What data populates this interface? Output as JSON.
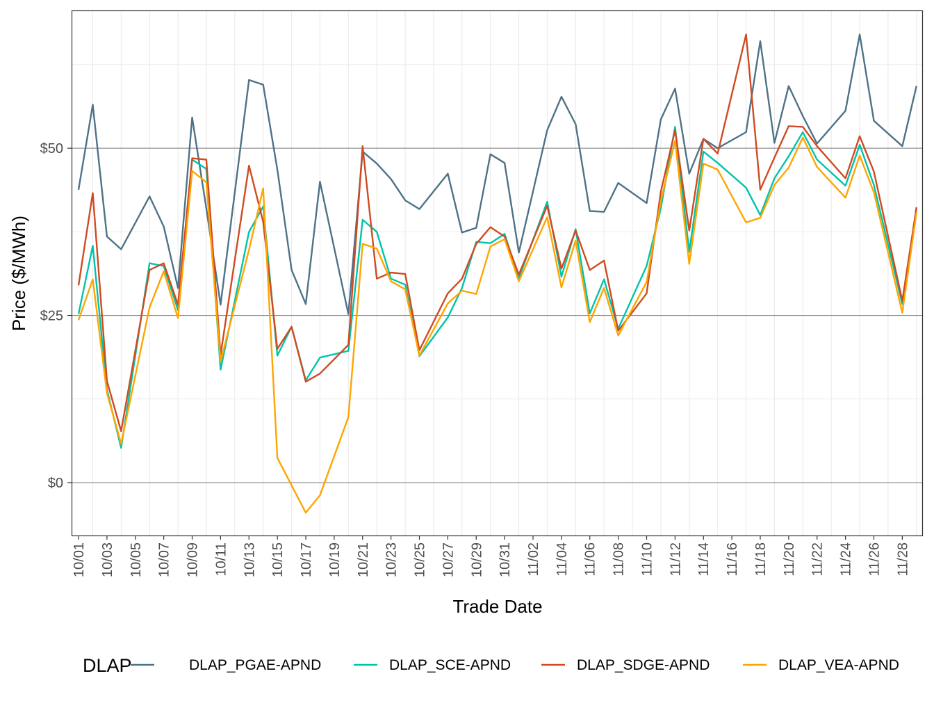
{
  "chart_data": {
    "type": "line",
    "title": "",
    "xlabel": "Trade Date",
    "ylabel": "Price ($/MWh)",
    "ylim": [
      -7.9,
      70.6
    ],
    "xlim": [
      "10/01",
      "11/29"
    ],
    "y_ticks": [
      {
        "value": 0,
        "label": "$0"
      },
      {
        "value": 25,
        "label": "$25"
      },
      {
        "value": 50,
        "label": "$50"
      }
    ],
    "x_tick_labels": [
      "10/01",
      "10/03",
      "10/05",
      "10/07",
      "10/09",
      "10/11",
      "10/13",
      "10/15",
      "10/17",
      "10/19",
      "10/21",
      "10/23",
      "10/25",
      "10/27",
      "10/29",
      "10/31",
      "11/02",
      "11/04",
      "11/06",
      "11/08",
      "11/10",
      "11/12",
      "11/14",
      "11/16",
      "11/18",
      "11/20",
      "11/22",
      "11/24",
      "11/26",
      "11/28"
    ],
    "grid": true,
    "legend_position": "bottom",
    "legend_title": "DLAP",
    "x": [
      "10/01",
      "10/02",
      "10/03",
      "10/04",
      "10/06",
      "10/07",
      "10/08",
      "10/09",
      "10/10",
      "10/11",
      "10/13",
      "10/14",
      "10/15",
      "10/16",
      "10/17",
      "10/18",
      "10/20",
      "10/21",
      "10/22",
      "10/23",
      "10/24",
      "10/25",
      "10/27",
      "10/28",
      "10/29",
      "10/30",
      "10/31",
      "11/01",
      "11/03",
      "11/04",
      "11/05",
      "11/06",
      "11/07",
      "11/08",
      "11/10",
      "11/11",
      "11/12",
      "11/13",
      "11/14",
      "11/15",
      "11/17",
      "11/18",
      "11/19",
      "11/20",
      "11/21",
      "11/22",
      "11/24",
      "11/25",
      "11/26",
      "11/28",
      "11/29"
    ],
    "series": [
      {
        "name": "DLAP_PGAE-APND",
        "color": "#4E7287",
        "values": [
          43.8,
          56.5,
          36.8,
          34.9,
          42.8,
          38.3,
          29.1,
          54.6,
          41.0,
          26.6,
          60.2,
          59.5,
          46.8,
          31.8,
          26.7,
          45.0,
          25.2,
          49.5,
          47.7,
          45.4,
          42.2,
          40.9,
          46.2,
          37.4,
          38.1,
          49.1,
          47.8,
          34.4,
          52.7,
          57.7,
          53.6,
          40.6,
          40.5,
          44.8,
          41.8,
          54.3,
          58.9,
          46.2,
          51.4,
          50.0,
          52.4,
          66.0,
          50.8,
          59.3,
          54.8,
          50.7,
          55.6,
          67.0,
          54.1,
          50.3,
          59.3
        ]
      },
      {
        "name": "DLAP_SCE-APND",
        "color": "#00C4AA",
        "values": [
          25.2,
          35.4,
          13.9,
          5.2,
          32.8,
          32.4,
          25.8,
          48.3,
          46.9,
          16.9,
          37.5,
          41.3,
          19.0,
          23.3,
          15.3,
          18.7,
          19.7,
          39.3,
          37.5,
          30.5,
          29.6,
          18.9,
          24.7,
          29.1,
          36.0,
          35.8,
          37.2,
          30.6,
          42.0,
          30.8,
          37.9,
          25.3,
          30.4,
          23.0,
          32.4,
          41.0,
          53.2,
          34.5,
          49.5,
          47.8,
          44.1,
          40.0,
          45.5,
          48.8,
          52.4,
          48.3,
          44.4,
          50.5,
          44.5,
          26.7,
          41.2
        ]
      },
      {
        "name": "DLAP_SDGE-APND",
        "color": "#D04A22",
        "values": [
          29.5,
          43.3,
          15.2,
          7.7,
          31.8,
          32.8,
          26.6,
          48.5,
          48.3,
          19.1,
          47.4,
          39.0,
          20.0,
          23.3,
          15.1,
          16.3,
          20.6,
          50.3,
          30.5,
          31.4,
          31.2,
          19.8,
          28.3,
          30.5,
          35.7,
          38.2,
          36.8,
          31.1,
          41.4,
          32.0,
          37.7,
          31.8,
          33.2,
          22.7,
          28.3,
          43.5,
          52.7,
          37.7,
          51.4,
          49.2,
          67.0,
          43.8,
          48.6,
          53.3,
          53.2,
          50.3,
          45.5,
          51.8,
          46.5,
          27.2,
          41.1
        ]
      },
      {
        "name": "DLAP_VEA-APND",
        "color": "#FFA500",
        "values": [
          24.3,
          30.4,
          13.4,
          5.8,
          26.2,
          31.6,
          24.6,
          46.6,
          44.9,
          18.1,
          34.8,
          44.0,
          3.7,
          -0.4,
          -4.5,
          -1.9,
          9.8,
          35.7,
          35.0,
          30.1,
          28.9,
          19.0,
          26.8,
          28.7,
          28.2,
          35.3,
          36.4,
          30.1,
          39.7,
          29.2,
          36.2,
          24.0,
          29.1,
          22.0,
          30.0,
          42.1,
          51.1,
          32.7,
          47.7,
          46.8,
          38.9,
          39.6,
          44.5,
          47.1,
          51.6,
          47.2,
          42.6,
          48.9,
          43.4,
          25.4,
          40.4
        ]
      }
    ]
  }
}
